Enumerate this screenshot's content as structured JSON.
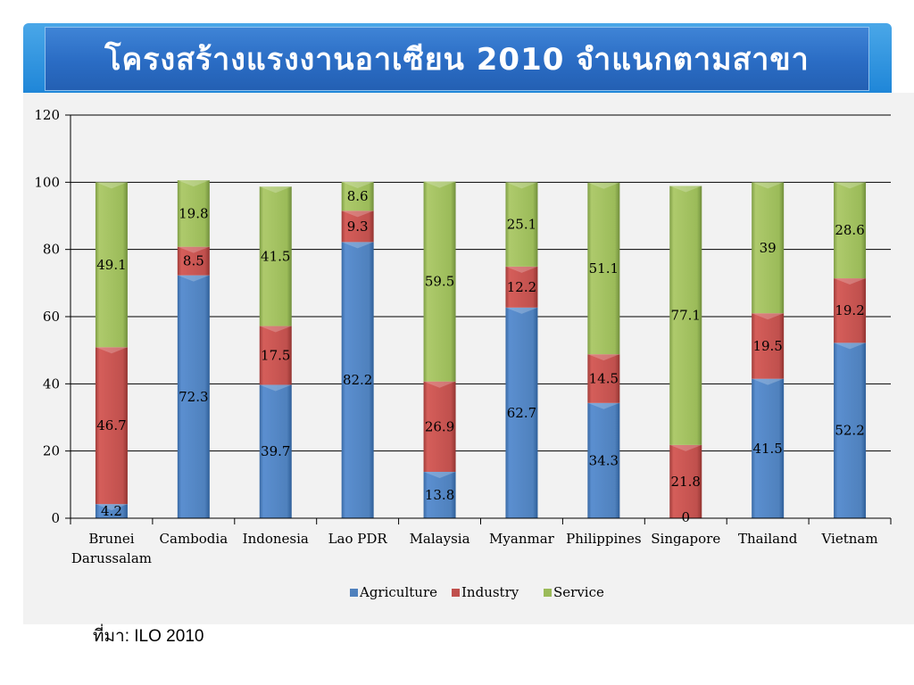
{
  "title": "โครงสร้างแรงงานอาเซียน 2010 จำแนกตามสาขา",
  "source": "ที่มา: ILO 2010",
  "colors": {
    "agriculture": "#4f81bd",
    "industry": "#c0504d",
    "service": "#9bbb59"
  },
  "chart_data": {
    "type": "bar",
    "stacked": true,
    "categories": [
      [
        "Brunei",
        "Darussalam"
      ],
      [
        "Cambodia"
      ],
      [
        "Indonesia"
      ],
      [
        "Lao PDR"
      ],
      [
        "Malaysia"
      ],
      [
        "Myanmar"
      ],
      [
        "Philippines"
      ],
      [
        "Singapore"
      ],
      [
        "Thailand"
      ],
      [
        "Vietnam"
      ]
    ],
    "series": [
      {
        "name": "Agriculture",
        "color": "#4f81bd",
        "values": [
          4.2,
          72.3,
          39.7,
          82.2,
          13.8,
          62.7,
          34.3,
          0,
          41.5,
          52.2
        ],
        "labels": [
          "4.2",
          "72.3",
          "39.7",
          "82.2",
          "13.8",
          "62.7",
          "34.3",
          "0",
          "41.5",
          "52.2"
        ]
      },
      {
        "name": "Industry",
        "color": "#c0504d",
        "values": [
          46.7,
          8.5,
          17.5,
          9.3,
          26.9,
          12.2,
          14.5,
          21.8,
          19.5,
          19.2
        ],
        "labels": [
          "46.7",
          "8.5",
          "17.5",
          "9.3",
          "26.9",
          "12.2",
          "14.5",
          "21.8",
          "19.5",
          "19.2"
        ]
      },
      {
        "name": "Service",
        "color": "#9bbb59",
        "values": [
          49.1,
          19.8,
          41.5,
          8.6,
          59.5,
          25.1,
          51.1,
          77.1,
          39,
          28.6
        ],
        "labels": [
          "49.1",
          "19.8",
          "41.5",
          "8.6",
          "59.5",
          "25.1",
          "51.1",
          "77.1",
          "39",
          "28.6"
        ]
      }
    ],
    "ylim": [
      0,
      120
    ],
    "yticks": [
      0,
      20,
      40,
      60,
      80,
      100,
      120
    ],
    "legend_position": "bottom",
    "grid": true
  }
}
